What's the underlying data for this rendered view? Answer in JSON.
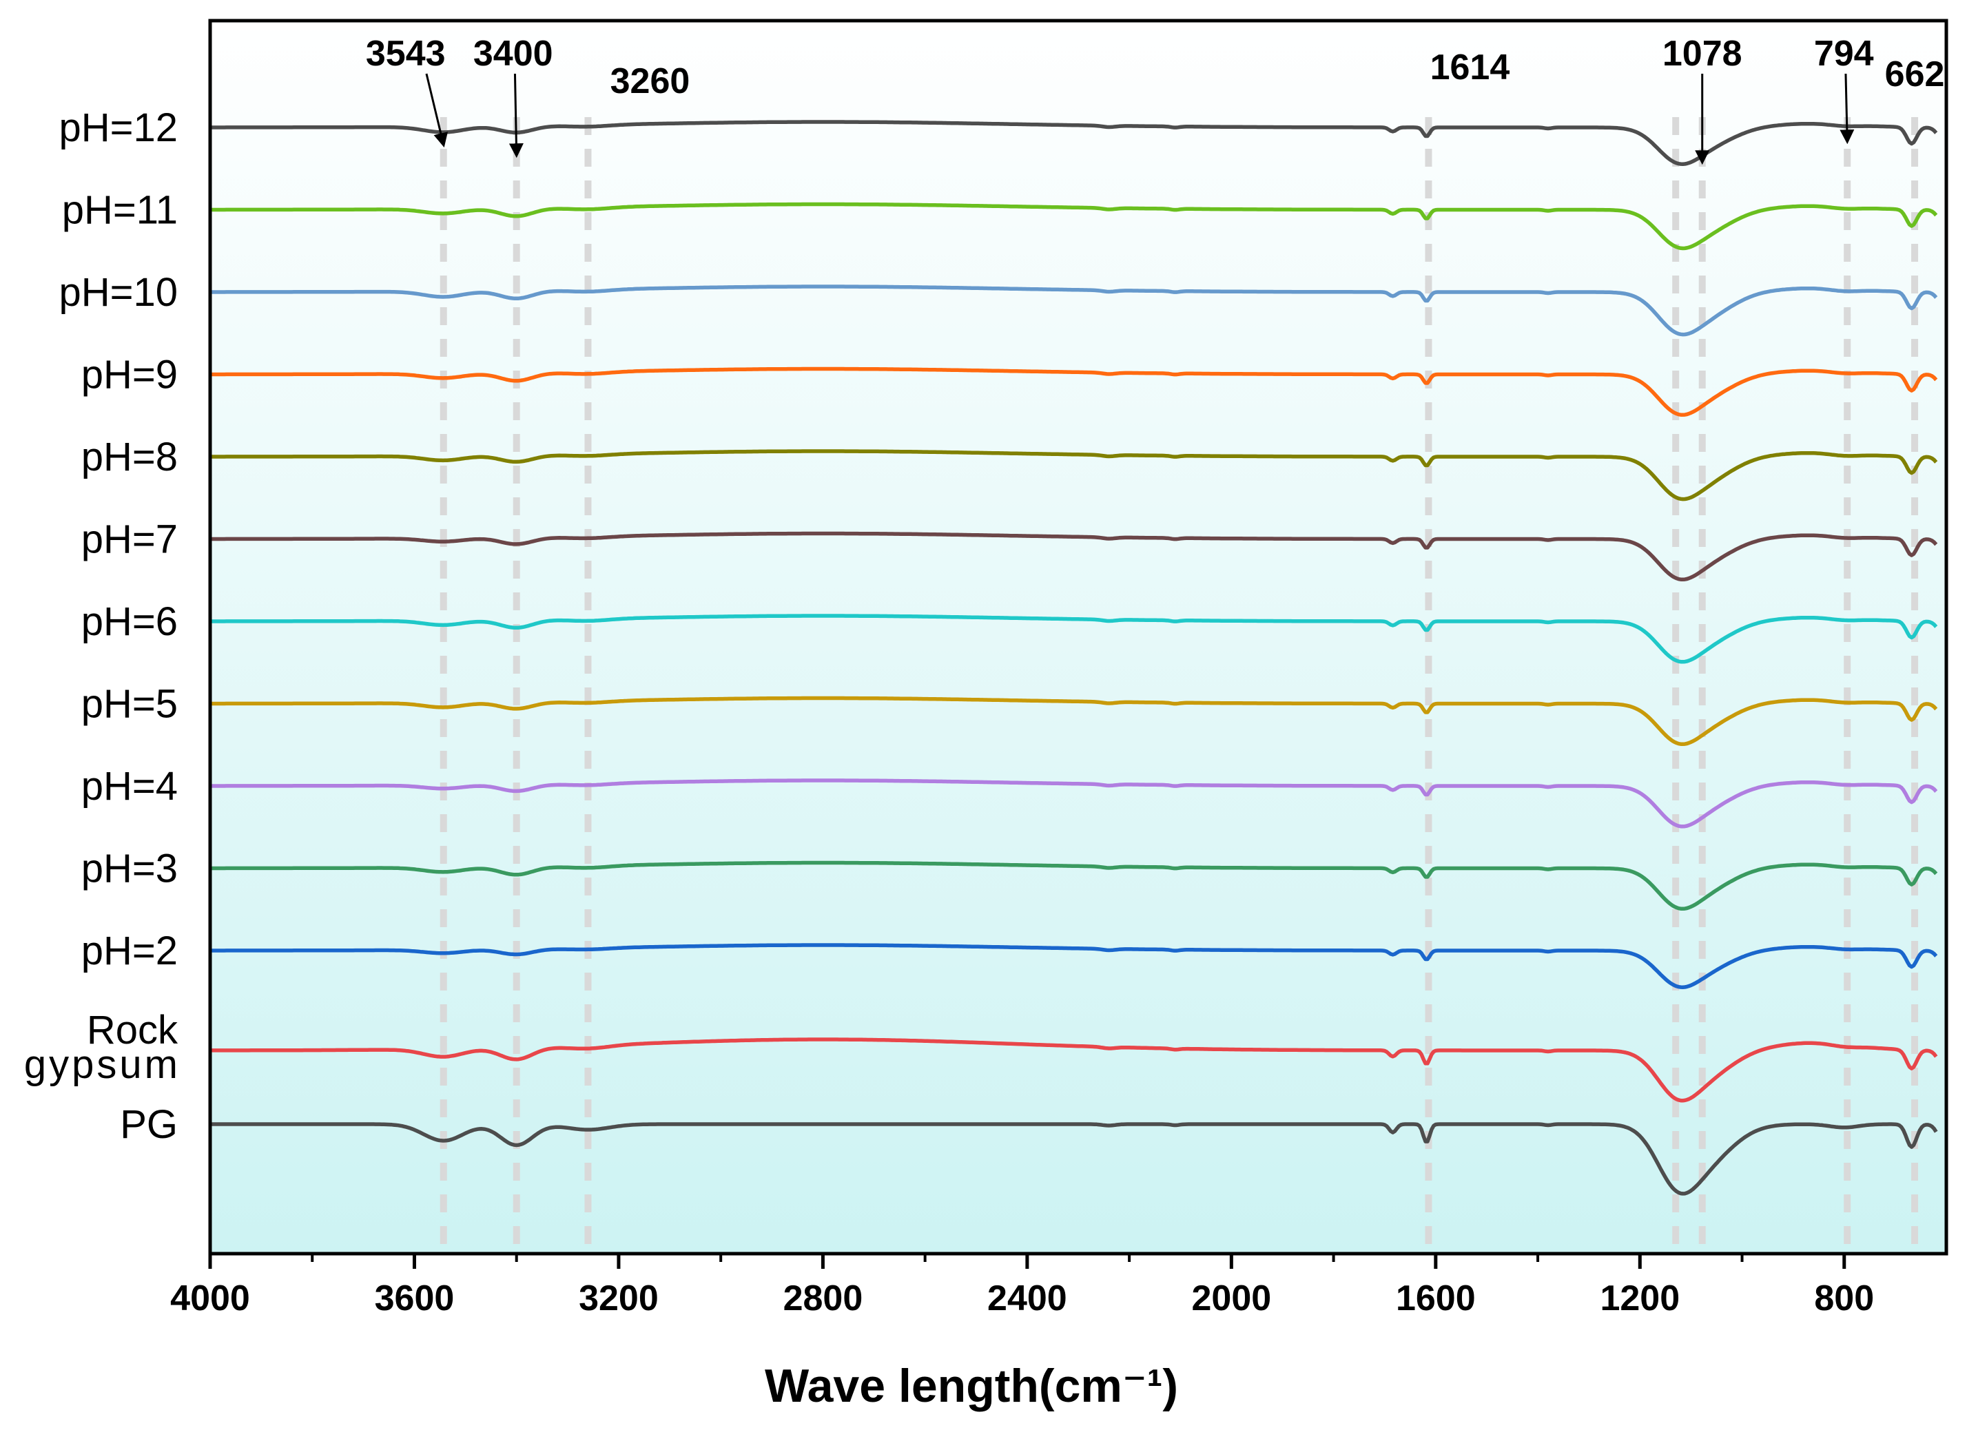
{
  "chart_data": {
    "type": "line",
    "title": "",
    "xlabel": "Wave length(cm⁻¹)",
    "ylabel": "",
    "xlim": [
      4000,
      600
    ],
    "x_direction": "reversed",
    "xticks": [
      4000,
      3600,
      3200,
      2800,
      2400,
      2000,
      1600,
      1200,
      800
    ],
    "xtick_labels": [
      "4000",
      "3600",
      "3200",
      "2800",
      "2400",
      "2000",
      "1600",
      "1200",
      "800"
    ],
    "grid": false,
    "background": "light cyan gradient",
    "reference_lines": [
      3543,
      3400,
      3260,
      1614,
      1130,
      1078,
      794,
      662
    ],
    "peak_annotations": [
      {
        "label": "3543",
        "x": 3543,
        "arrow": true
      },
      {
        "label": "3400",
        "x": 3400,
        "arrow": true
      },
      {
        "label": "3260",
        "x": 3260,
        "arrow": false
      },
      {
        "label": "1614",
        "x": 1614,
        "arrow": false
      },
      {
        "label": "1078",
        "x": 1078,
        "arrow": true
      },
      {
        "label": "794",
        "x": 794,
        "arrow": true
      },
      {
        "label": "662",
        "x": 662,
        "arrow": false
      }
    ],
    "series": [
      {
        "name": "pH=12",
        "color": "#4d4d4d",
        "d3543": 0.25,
        "d3400": 0.25,
        "d1614": 0.3,
        "d1130": 0.55,
        "d1078": 0.4,
        "d662": 0.4,
        "rise": 0.1
      },
      {
        "name": "pH=11",
        "color": "#6abf1f",
        "d3543": 0.2,
        "d3400": 0.3,
        "d1614": 0.3,
        "d1130": 0.55,
        "d1078": 0.45,
        "d662": 0.4,
        "rise": 0.1
      },
      {
        "name": "pH=10",
        "color": "#6699cc",
        "d3543": 0.25,
        "d3400": 0.3,
        "d1614": 0.3,
        "d1130": 0.6,
        "d1078": 0.5,
        "d662": 0.4,
        "rise": 0.1
      },
      {
        "name": "pH=9",
        "color": "#ff6a10",
        "d3543": 0.2,
        "d3400": 0.3,
        "d1614": 0.3,
        "d1130": 0.6,
        "d1078": 0.45,
        "d662": 0.4,
        "rise": 0.1
      },
      {
        "name": "pH=8",
        "color": "#808000",
        "d3543": 0.2,
        "d3400": 0.25,
        "d1614": 0.3,
        "d1130": 0.6,
        "d1078": 0.5,
        "d662": 0.4,
        "rise": 0.1
      },
      {
        "name": "pH=7",
        "color": "#6b4648",
        "d3543": 0.15,
        "d3400": 0.25,
        "d1614": 0.3,
        "d1130": 0.6,
        "d1078": 0.45,
        "d662": 0.4,
        "rise": 0.1
      },
      {
        "name": "pH=6",
        "color": "#1fc8c8",
        "d3543": 0.2,
        "d3400": 0.3,
        "d1614": 0.3,
        "d1130": 0.6,
        "d1078": 0.45,
        "d662": 0.4,
        "rise": 0.1
      },
      {
        "name": "pH=5",
        "color": "#c89a0a",
        "d3543": 0.2,
        "d3400": 0.25,
        "d1614": 0.3,
        "d1130": 0.6,
        "d1078": 0.45,
        "d662": 0.4,
        "rise": 0.1
      },
      {
        "name": "pH=4",
        "color": "#b07ee0",
        "d3543": 0.15,
        "d3400": 0.25,
        "d1614": 0.3,
        "d1130": 0.6,
        "d1078": 0.45,
        "d662": 0.4,
        "rise": 0.1
      },
      {
        "name": "pH=3",
        "color": "#3a9a60",
        "d3543": 0.2,
        "d3400": 0.3,
        "d1614": 0.3,
        "d1130": 0.6,
        "d1078": 0.45,
        "d662": 0.4,
        "rise": 0.1
      },
      {
        "name": "pH=2",
        "color": "#1a66cc",
        "d3543": 0.15,
        "d3400": 0.2,
        "d1614": 0.3,
        "d1130": 0.55,
        "d1078": 0.4,
        "d662": 0.4,
        "rise": 0.1
      },
      {
        "name": "Rock\ngypsum",
        "color": "#e8464a",
        "d3543": 0.35,
        "d3400": 0.45,
        "d1614": 0.45,
        "d1130": 0.75,
        "d1078": 0.55,
        "d662": 0.45,
        "rise": 0.2
      },
      {
        "name": "PG",
        "color": "#4d4d4d",
        "d3543": 0.75,
        "d3400": 0.8,
        "d1614": 0.6,
        "d1130": 1.0,
        "d1078": 0.8,
        "d662": 0.55,
        "rise": 0.0
      }
    ]
  }
}
